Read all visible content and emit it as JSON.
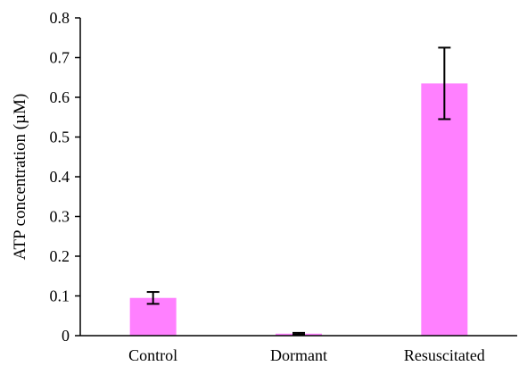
{
  "chart_data": {
    "type": "bar",
    "title": "",
    "xlabel": "",
    "ylabel": "ATP concentration (µM)",
    "categories": [
      "Control",
      "Dormant",
      "Resuscitated"
    ],
    "values": [
      0.095,
      0.005,
      0.635
    ],
    "error_bars": [
      0.015,
      0.002,
      0.09
    ],
    "ylim": [
      0,
      0.8
    ],
    "yticks": [
      0,
      0.1,
      0.2,
      0.3,
      0.4,
      0.5,
      0.6,
      0.7,
      0.8
    ],
    "ytick_labels": [
      "0",
      "0.1",
      "0.2",
      "0.3",
      "0.4",
      "0.5",
      "0.6",
      "0.7",
      "0.8"
    ],
    "bar_color": "#ff80ff",
    "error_bar_color": "#000000",
    "grid": false,
    "legend": "none"
  }
}
